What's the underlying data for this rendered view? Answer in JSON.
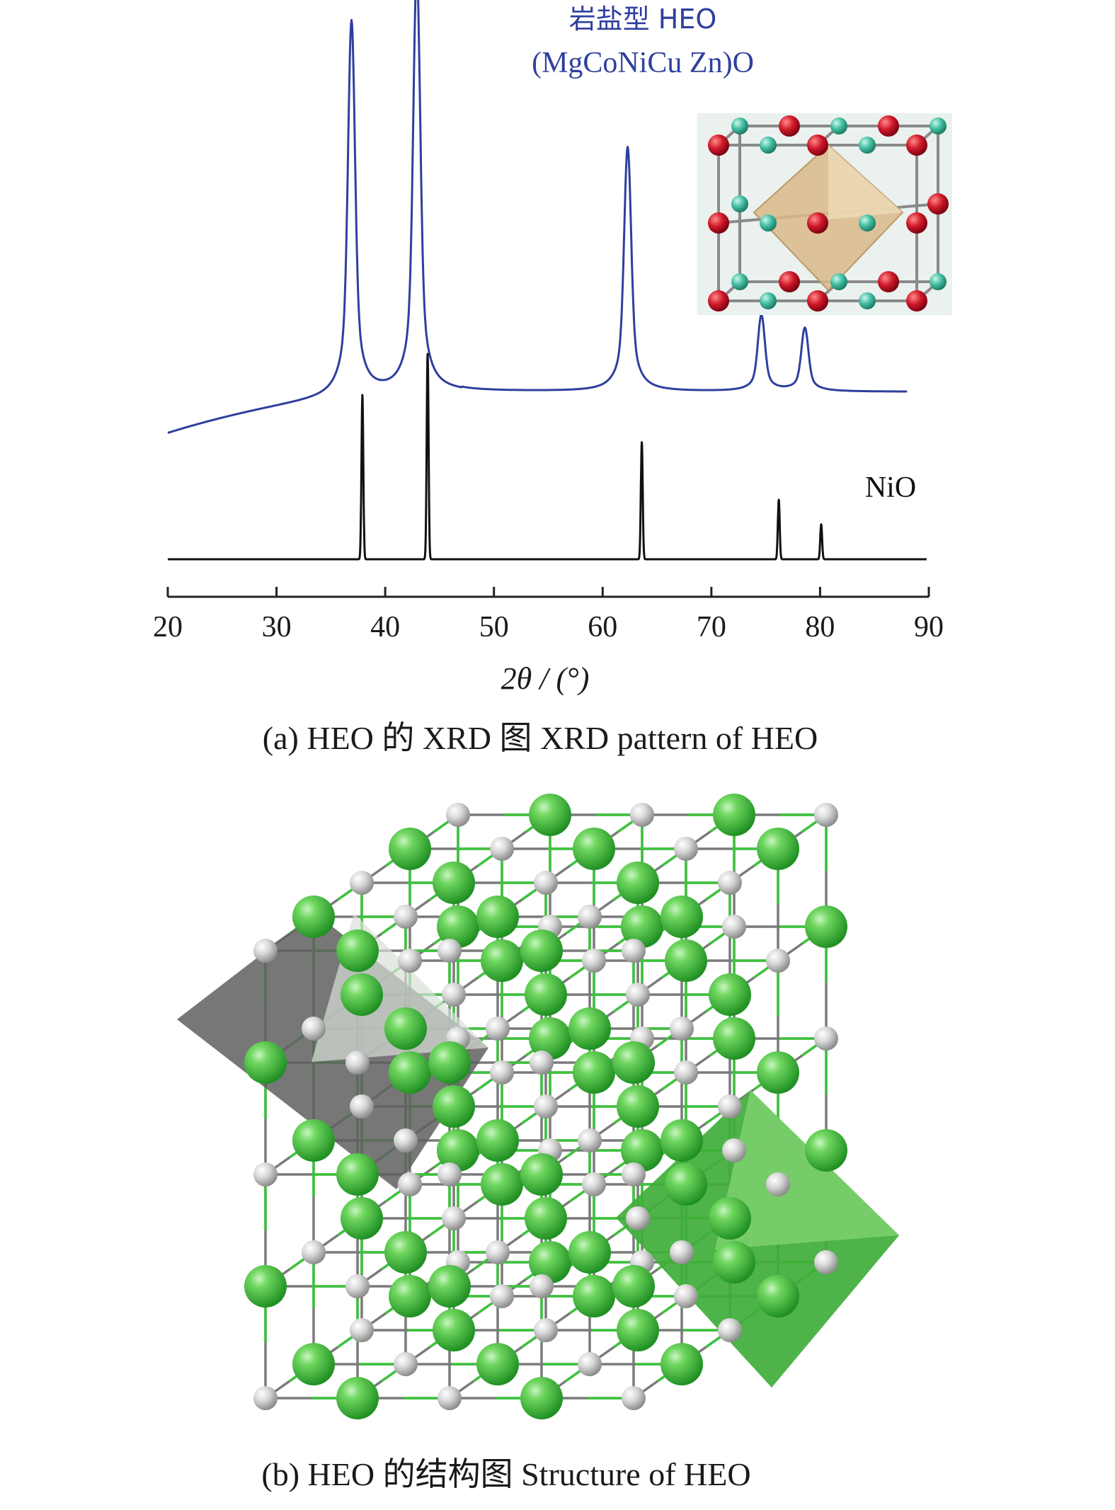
{
  "colors": {
    "heo_line": "#2f3f9e",
    "nio_line": "#111111",
    "axis": "#222222",
    "oxygen_atom": "#c8c8c8",
    "metal_atom": "#33bb33",
    "inset_oxygen": "#cc1a2a",
    "inset_metal": "#3fb79a",
    "octahedron_tan": "#d9b98a",
    "octahedron_gray": "#5f5f5f",
    "octahedron_green": "#3fae3a"
  },
  "figure_a": {
    "caption": "(a) HEO 的 XRD 图 XRD pattern of HEO",
    "inset_label_line1": "岩盐型 HEO",
    "inset_label_line2": "(MgCoNiCu Zn)O",
    "nio_label": "NiO",
    "inset_icon": "rock-salt-unit-cell-icon"
  },
  "figure_b": {
    "caption": "(b) HEO 的结构图 Structure of HEO",
    "illustration": "rock-salt-lattice-with-octahedra"
  },
  "chart_data": {
    "type": "line",
    "xlabel": "2θ / (°)",
    "ylabel": "",
    "xlim": [
      20,
      90
    ],
    "xticks": [
      20,
      30,
      40,
      50,
      60,
      70,
      80,
      90
    ],
    "yticks_shown": false,
    "grid": false,
    "series": [
      {
        "name": "岩盐型 HEO (MgCoNiCu Zn)O",
        "color": "#2f3f9e",
        "baseline": "curved rising background from 20° leveling by ~45°",
        "peaks": [
          {
            "x": 36.9,
            "intensity": 0.89
          },
          {
            "x": 42.9,
            "intensity": 1.0
          },
          {
            "x": 62.3,
            "intensity": 0.58
          },
          {
            "x": 74.6,
            "intensity": 0.18
          },
          {
            "x": 78.6,
            "intensity": 0.15
          }
        ]
      },
      {
        "name": "NiO",
        "color": "#111111",
        "peaks": [
          {
            "x": 37.9,
            "intensity": 0.8
          },
          {
            "x": 43.9,
            "intensity": 1.0
          },
          {
            "x": 63.6,
            "intensity": 0.57
          },
          {
            "x": 76.2,
            "intensity": 0.29
          },
          {
            "x": 80.1,
            "intensity": 0.17
          }
        ]
      }
    ]
  }
}
